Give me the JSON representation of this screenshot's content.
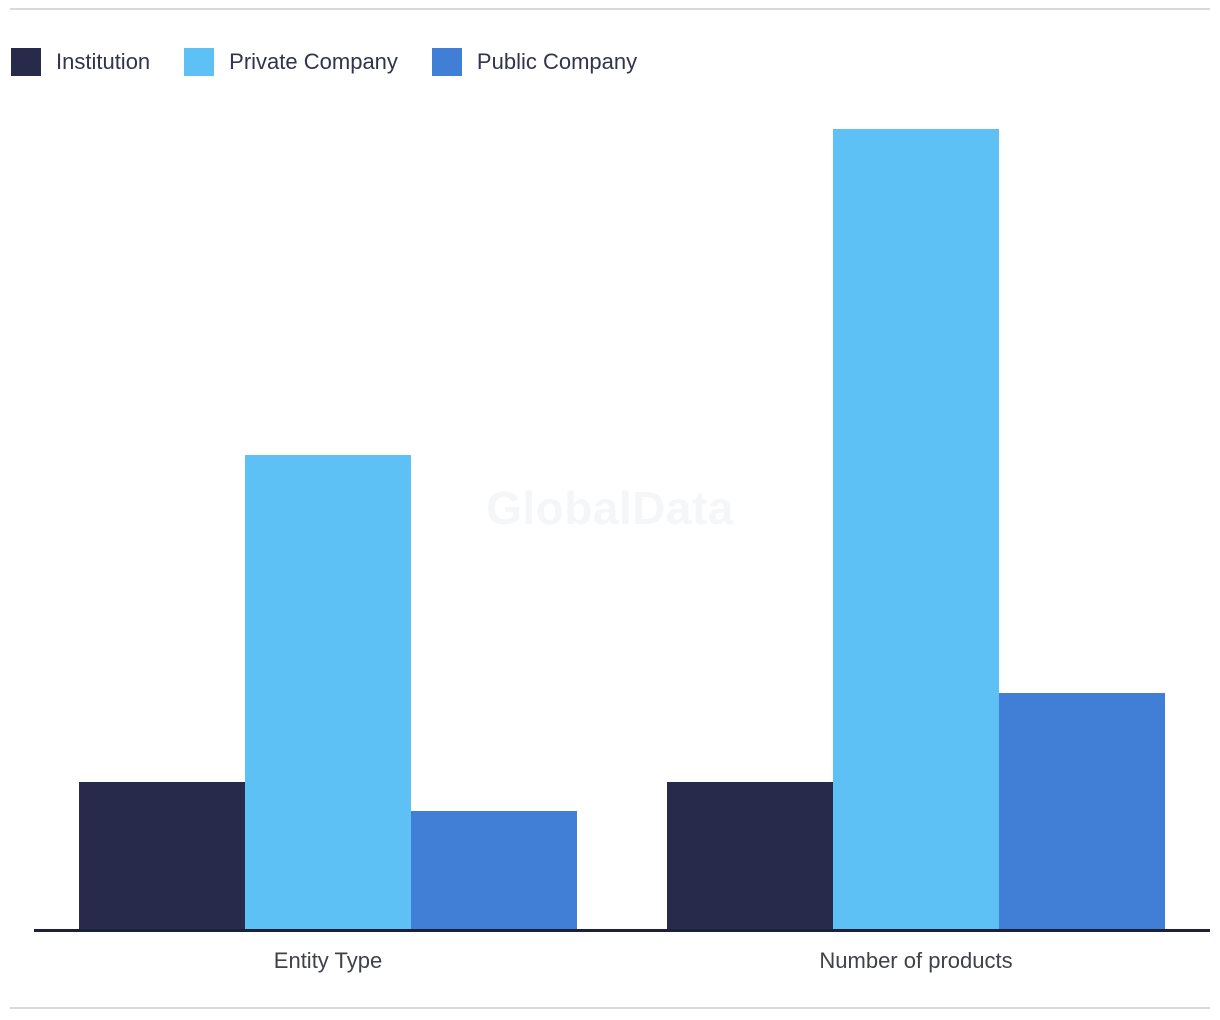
{
  "page": {
    "background": "#ffffff",
    "divider_color": "#d9d9d9"
  },
  "watermark": {
    "text": "GlobalData",
    "color": "#f5f6f7"
  },
  "chart_data": {
    "type": "bar",
    "title": "",
    "xlabel": "",
    "ylabel": "",
    "categories": [
      "Entity Type",
      "Number of products"
    ],
    "series": [
      {
        "name": "Institution",
        "color": "#272a4a",
        "values": [
          5,
          5
        ]
      },
      {
        "name": "Private Company",
        "color": "#5ec1f5",
        "values": [
          16,
          27
        ]
      },
      {
        "name": "Public Company",
        "color": "#417fd6",
        "values": [
          4,
          8
        ]
      }
    ],
    "ylim": [
      0,
      27
    ],
    "grid": false,
    "y_axis_visible": false,
    "x_axis_line_color": "#1c203a",
    "legend_position": "top-left",
    "legend_text_color": "#32334d",
    "category_label_color": "#3f4246"
  }
}
